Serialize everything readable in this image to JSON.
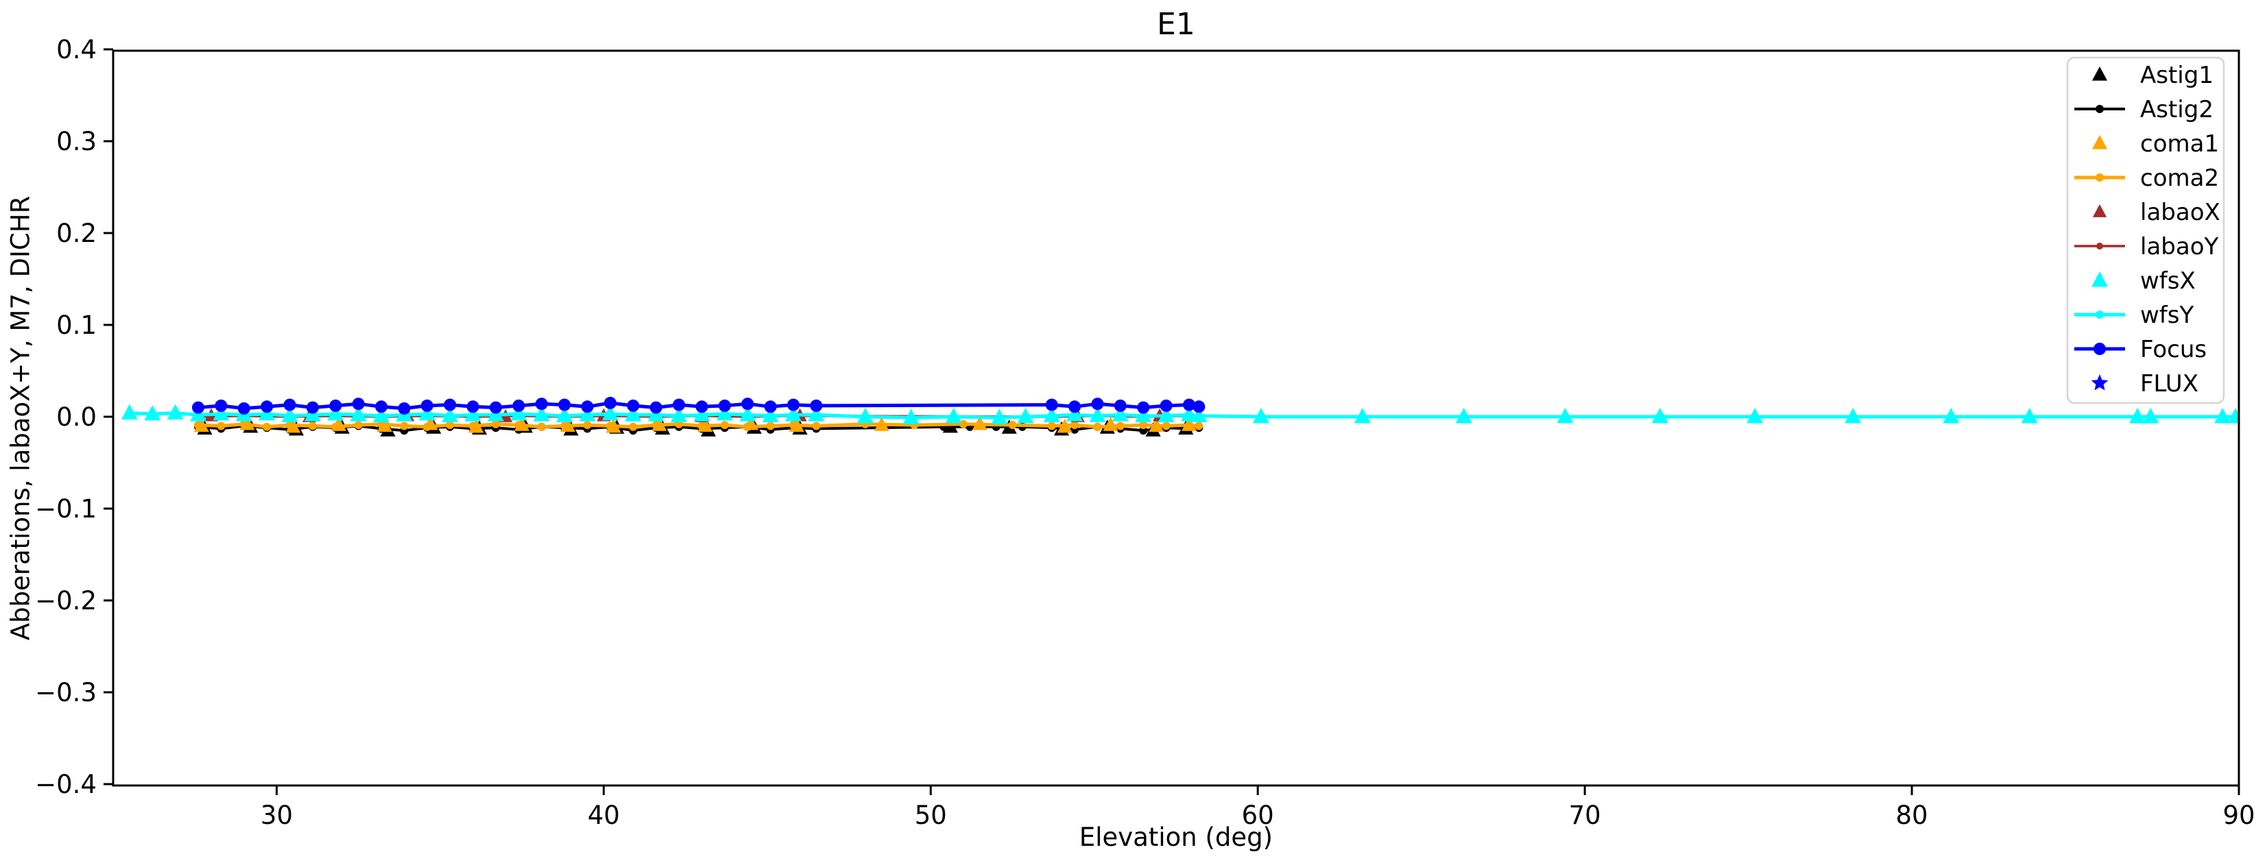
{
  "figure": {
    "background": "#ffffff"
  },
  "chart_data": {
    "type": "line",
    "title": "E1",
    "xlabel": "Elevation (deg)",
    "ylabel": "Abberations, labaoX+Y, M7, DICHR",
    "xlim": [
      25,
      90
    ],
    "ylim": [
      -0.4,
      0.4
    ],
    "xticks": [
      30,
      40,
      50,
      60,
      70,
      80,
      90
    ],
    "yticks": [
      0.4,
      0.3,
      0.2,
      0.1,
      0.0,
      -0.1,
      -0.2,
      -0.3,
      -0.4
    ],
    "grid": false,
    "legend_position": "upper right",
    "legend_frame_color": "#d5d5d5",
    "series": [
      {
        "name": "Astig1",
        "color": "#000000",
        "line": false,
        "lw": 0,
        "marker": "triangle",
        "marker_size": 12,
        "x": [
          27.8,
          29.2,
          30.6,
          32.0,
          33.4,
          34.8,
          36.2,
          37.6,
          39.0,
          40.4,
          41.8,
          43.2,
          44.6,
          46.0,
          50.6,
          52.4,
          54.0,
          55.4,
          56.8,
          57.8
        ],
        "y": [
          -0.013,
          -0.011,
          -0.014,
          -0.012,
          -0.015,
          -0.012,
          -0.013,
          -0.011,
          -0.014,
          -0.012,
          -0.013,
          -0.015,
          -0.012,
          -0.013,
          -0.011,
          -0.012,
          -0.014,
          -0.012,
          -0.015,
          -0.013
        ]
      },
      {
        "name": "Astig2",
        "color": "#000000",
        "line": true,
        "lw": 4,
        "marker": "circle",
        "marker_size": 6,
        "x": [
          27.6,
          28.3,
          29.0,
          29.7,
          30.4,
          31.1,
          31.8,
          32.5,
          33.2,
          33.9,
          34.6,
          35.3,
          36.0,
          36.7,
          37.4,
          38.1,
          38.8,
          39.5,
          40.2,
          40.9,
          41.6,
          42.3,
          43.0,
          43.7,
          44.4,
          45.1,
          45.8,
          46.5,
          50.4,
          51.2,
          52.0,
          52.8,
          53.7,
          54.4,
          55.1,
          55.8,
          56.5,
          57.2,
          57.9,
          58.2
        ],
        "y": [
          -0.011,
          -0.013,
          -0.01,
          -0.012,
          -0.014,
          -0.011,
          -0.012,
          -0.01,
          -0.013,
          -0.015,
          -0.012,
          -0.011,
          -0.013,
          -0.012,
          -0.014,
          -0.011,
          -0.012,
          -0.013,
          -0.011,
          -0.015,
          -0.012,
          -0.011,
          -0.013,
          -0.012,
          -0.011,
          -0.014,
          -0.012,
          -0.013,
          -0.011,
          -0.011,
          -0.011,
          -0.011,
          -0.012,
          -0.014,
          -0.011,
          -0.013,
          -0.015,
          -0.012,
          -0.013,
          -0.012
        ]
      },
      {
        "name": "coma1",
        "color": "#FFA500",
        "line": false,
        "lw": 0,
        "marker": "triangle",
        "marker_size": 12,
        "x": [
          27.7,
          29.1,
          30.5,
          31.9,
          33.3,
          34.7,
          36.1,
          37.5,
          38.9,
          40.3,
          41.7,
          43.1,
          44.5,
          45.9,
          48.5,
          51.5,
          54.1,
          55.5,
          56.9,
          57.9
        ],
        "y": [
          -0.01,
          -0.008,
          -0.011,
          -0.009,
          -0.01,
          -0.008,
          -0.011,
          -0.009,
          -0.01,
          -0.011,
          -0.009,
          -0.01,
          -0.008,
          -0.01,
          -0.009,
          -0.008,
          -0.011,
          -0.009,
          -0.01,
          -0.009
        ]
      },
      {
        "name": "coma2",
        "color": "#FFA500",
        "line": true,
        "lw": 5,
        "marker": "circle",
        "marker_size": 6,
        "x": [
          27.6,
          28.3,
          29.0,
          29.7,
          30.4,
          31.1,
          31.8,
          32.5,
          33.2,
          33.9,
          34.6,
          35.3,
          36.0,
          36.7,
          37.4,
          38.1,
          38.8,
          39.5,
          40.2,
          40.9,
          41.6,
          42.3,
          43.0,
          43.7,
          44.4,
          45.1,
          45.8,
          46.5,
          48.0,
          49.5,
          51.0,
          52.5,
          53.7,
          54.4,
          55.1,
          55.8,
          56.5,
          57.2,
          57.9,
          58.2
        ],
        "y": [
          -0.009,
          -0.01,
          -0.008,
          -0.011,
          -0.009,
          -0.01,
          -0.011,
          -0.009,
          -0.008,
          -0.01,
          -0.011,
          -0.009,
          -0.01,
          -0.008,
          -0.009,
          -0.011,
          -0.01,
          -0.009,
          -0.01,
          -0.011,
          -0.009,
          -0.008,
          -0.01,
          -0.009,
          -0.011,
          -0.01,
          -0.009,
          -0.01,
          -0.008,
          -0.009,
          -0.008,
          -0.009,
          -0.01,
          -0.009,
          -0.011,
          -0.01,
          -0.009,
          -0.01,
          -0.009,
          -0.01
        ]
      },
      {
        "name": "labaoX",
        "color": "#A52A2A",
        "line": false,
        "lw": 0,
        "marker": "triangle",
        "marker_size": 11,
        "x": [
          28.0,
          31.0,
          34.0,
          37.0,
          40.0,
          43.0,
          46.0,
          54.5,
          57.0
        ],
        "y": [
          0.001,
          0.0,
          0.001,
          0.0,
          0.001,
          0.0,
          0.001,
          0.0,
          0.001
        ]
      },
      {
        "name": "labaoY",
        "color": "#A52A2A",
        "line": true,
        "lw": 3.5,
        "marker": "circle",
        "marker_size": 5,
        "x": [
          27.6,
          29.0,
          30.4,
          31.8,
          33.2,
          34.6,
          36.0,
          37.4,
          38.8,
          40.2,
          41.6,
          43.0,
          44.4,
          45.8,
          53.7,
          55.1,
          56.5,
          57.9
        ],
        "y": [
          0.0,
          0.001,
          0.0,
          0.001,
          0.0,
          0.001,
          0.0,
          0.001,
          0.0,
          0.001,
          0.0,
          0.001,
          0.0,
          0.001,
          0.0,
          0.001,
          0.0,
          0.001
        ]
      },
      {
        "name": "wfsX",
        "color": "#00FFFF",
        "line": false,
        "lw": 0,
        "marker": "triangle",
        "marker_size": 13,
        "x": [
          25.5,
          26.2,
          26.9,
          27.6,
          28.3,
          29.0,
          29.7,
          30.4,
          31.1,
          31.8,
          32.5,
          33.2,
          33.9,
          34.6,
          35.3,
          36.0,
          36.7,
          37.4,
          38.1,
          38.8,
          39.5,
          40.2,
          40.9,
          41.6,
          42.3,
          43.0,
          43.7,
          44.4,
          45.1,
          45.8,
          46.5,
          48.0,
          49.4,
          50.7,
          52.1,
          52.9,
          53.7,
          54.4,
          55.1,
          55.8,
          56.5,
          57.2,
          57.9,
          58.2,
          60.1,
          63.2,
          66.3,
          69.4,
          72.3,
          75.2,
          78.2,
          81.2,
          83.6,
          86.9,
          87.3,
          89.5,
          89.9
        ],
        "y": [
          0.004,
          0.003,
          0.004,
          0.002,
          0.003,
          0.002,
          0.003,
          0.001,
          0.002,
          0.003,
          0.002,
          0.001,
          0.002,
          0.003,
          0.001,
          0.002,
          0.002,
          0.003,
          0.002,
          0.001,
          0.002,
          0.003,
          0.002,
          0.002,
          0.001,
          0.002,
          0.003,
          0.002,
          0.001,
          0.002,
          0.002,
          0.0,
          -0.001,
          0.0,
          -0.001,
          0.0,
          0.001,
          0.002,
          0.001,
          0.002,
          0.001,
          0.001,
          0.002,
          0.001,
          0.0,
          0.0,
          0.0,
          0.0,
          0.0,
          0.0,
          0.0,
          0.0,
          0.0,
          0.0,
          0.0,
          0.0,
          0.0
        ]
      },
      {
        "name": "wfsY",
        "color": "#00FFFF",
        "line": true,
        "lw": 5,
        "marker": "circle",
        "marker_size": 6,
        "x": [
          25.5,
          26.2,
          26.9,
          27.6,
          28.3,
          29.0,
          29.7,
          30.4,
          31.1,
          31.8,
          32.5,
          33.2,
          33.9,
          34.6,
          35.3,
          36.0,
          36.7,
          37.4,
          38.1,
          38.8,
          39.5,
          40.2,
          40.9,
          41.6,
          42.3,
          43.0,
          43.7,
          44.4,
          45.1,
          45.8,
          46.5,
          48.0,
          49.4,
          50.7,
          52.1,
          52.9,
          53.7,
          54.4,
          55.1,
          55.8,
          56.5,
          57.2,
          57.9,
          58.2,
          60.1,
          63.2,
          66.3,
          69.4,
          72.3,
          75.2,
          78.2,
          81.2,
          83.6,
          86.9,
          87.3,
          89.5,
          89.9
        ],
        "y": [
          0.004,
          0.003,
          0.004,
          0.002,
          0.003,
          0.002,
          0.003,
          0.001,
          0.002,
          0.003,
          0.002,
          0.001,
          0.002,
          0.003,
          0.001,
          0.002,
          0.002,
          0.003,
          0.002,
          0.001,
          0.002,
          0.003,
          0.002,
          0.002,
          0.001,
          0.002,
          0.003,
          0.002,
          0.001,
          0.002,
          0.002,
          0.0,
          -0.001,
          0.0,
          -0.001,
          0.0,
          0.001,
          0.002,
          0.001,
          0.002,
          0.001,
          0.001,
          0.002,
          0.001,
          0.0,
          0.0,
          0.0,
          0.0,
          0.0,
          0.0,
          0.0,
          0.0,
          0.0,
          0.0,
          0.0,
          0.0,
          0.0
        ]
      },
      {
        "name": "Focus",
        "color": "#0000FF",
        "line": true,
        "lw": 5,
        "marker": "circle",
        "marker_size": 9,
        "x": [
          27.6,
          28.3,
          29.0,
          29.7,
          30.4,
          31.1,
          31.8,
          32.5,
          33.2,
          33.9,
          34.6,
          35.3,
          36.0,
          36.7,
          37.4,
          38.1,
          38.8,
          39.5,
          40.2,
          40.9,
          41.6,
          42.3,
          43.0,
          43.7,
          44.4,
          45.1,
          45.8,
          46.5,
          53.7,
          54.4,
          55.1,
          55.8,
          56.5,
          57.2,
          57.9,
          58.2
        ],
        "y": [
          0.01,
          0.012,
          0.009,
          0.011,
          0.013,
          0.01,
          0.012,
          0.014,
          0.011,
          0.009,
          0.012,
          0.013,
          0.011,
          0.01,
          0.012,
          0.014,
          0.013,
          0.011,
          0.015,
          0.012,
          0.01,
          0.013,
          0.011,
          0.012,
          0.014,
          0.011,
          0.013,
          0.012,
          0.013,
          0.011,
          0.014,
          0.012,
          0.01,
          0.012,
          0.013,
          0.011
        ]
      },
      {
        "name": "FLUX",
        "color": "#0000FF",
        "line": false,
        "lw": 0,
        "marker": "star",
        "marker_size": 13,
        "x": [],
        "y": []
      }
    ]
  }
}
